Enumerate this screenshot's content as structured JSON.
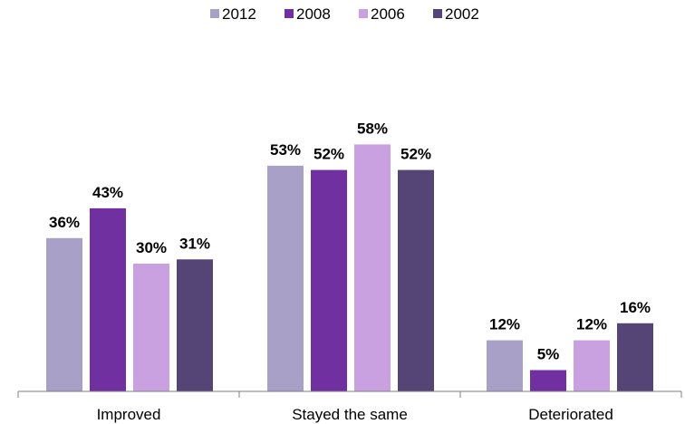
{
  "chart_data": {
    "type": "bar",
    "categories": [
      "Improved",
      "Stayed the same",
      "Deteriorated"
    ],
    "series": [
      {
        "name": "2012",
        "color": "#a9a0c8",
        "values": [
          36,
          53,
          12
        ]
      },
      {
        "name": "2008",
        "color": "#7030a0",
        "values": [
          43,
          52,
          5
        ]
      },
      {
        "name": "2006",
        "color": "#c9a0e0",
        "values": [
          30,
          58,
          12
        ]
      },
      {
        "name": "2002",
        "color": "#554577",
        "values": [
          31,
          52,
          16
        ]
      }
    ],
    "value_suffix": "%",
    "ylim": [
      0,
      72
    ],
    "legend_position": "top",
    "grid": false
  }
}
